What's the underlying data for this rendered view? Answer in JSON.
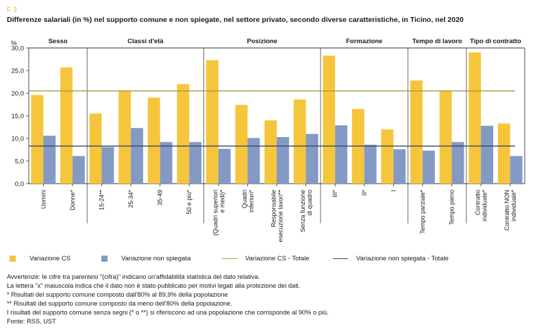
{
  "figure_label": "F. 3",
  "title": "Differenze salariali (in %) nel supporto comune e non spiegate, nel settore privato, secondo diverse caratteristiche, in Ticino, nel 2020",
  "chart_data": {
    "type": "bar",
    "ylabel": "%",
    "ylim": [
      0,
      30
    ],
    "yticks": [
      "0,0",
      "5,0",
      "10,0",
      "15,0",
      "20,0",
      "25,0",
      "30,0"
    ],
    "grid": false,
    "legend_position": "bottom",
    "groups": [
      {
        "name": "Sesso",
        "categories": [
          "Uomini",
          "Donne*"
        ]
      },
      {
        "name": "Classi d'età",
        "categories": [
          "15-24**",
          "25-34*",
          "35-49",
          "50 e più*"
        ]
      },
      {
        "name": "Posizione",
        "categories": [
          "(Quadri superiori e medi)*",
          "Quadri inferiori*",
          "Responsabile esecuzione lavori**",
          "Senza funzione di quadro"
        ]
      },
      {
        "name": "Formazione",
        "categories": [
          "III*",
          "II*",
          "I"
        ]
      },
      {
        "name": "Tempo di lavoro",
        "categories": [
          "Tempo parziale*",
          "Tempo pieno"
        ]
      },
      {
        "name": "Tipo di contratto",
        "categories": [
          "Contratto individuale*",
          "Contratto NON individuale*"
        ]
      }
    ],
    "series": [
      {
        "name": "Variazione CS",
        "color": "#f5c53c",
        "values": [
          19.6,
          25.7,
          15.5,
          20.6,
          19.0,
          22.0,
          27.3,
          17.4,
          14.0,
          18.6,
          28.3,
          16.5,
          12.0,
          22.8,
          20.6,
          29.0,
          13.3
        ]
      },
      {
        "name": "Variazione non spiegata",
        "color": "#8499c4",
        "values": [
          10.6,
          6.1,
          8.1,
          12.3,
          9.2,
          9.2,
          7.7,
          10.1,
          10.3,
          11.0,
          12.9,
          8.6,
          7.6,
          7.3,
          9.2,
          12.8,
          6.1
        ]
      }
    ],
    "reference_lines": [
      {
        "name": "Variazione CS - Totale",
        "value": 20.5,
        "color": "#a39d42"
      },
      {
        "name": "Variazione non spiegata - Totale",
        "value": 8.3,
        "color": "#36456b"
      }
    ]
  },
  "notes": [
    "Avvertenze: le cifre tra parentesi \"(cifra)\" indicano un'affidabilità statistica del dato relativa.",
    "La lettera \"x\" maiuscola indica che il dato non è stato pubblicato per motivi legati alla protezione dei dati.",
    "*  Risultati del supporto comune composto dall'80% al 89,9% della popolazione",
    "** Risultati del supporto comune composto da meno dell'80% della popolazione.",
    "I risultati del supporto comune senza segni (* o **) si riferiscono ad una popolazione che corrisponde al 90% o più.",
    "Fonte: RSS, UST"
  ]
}
